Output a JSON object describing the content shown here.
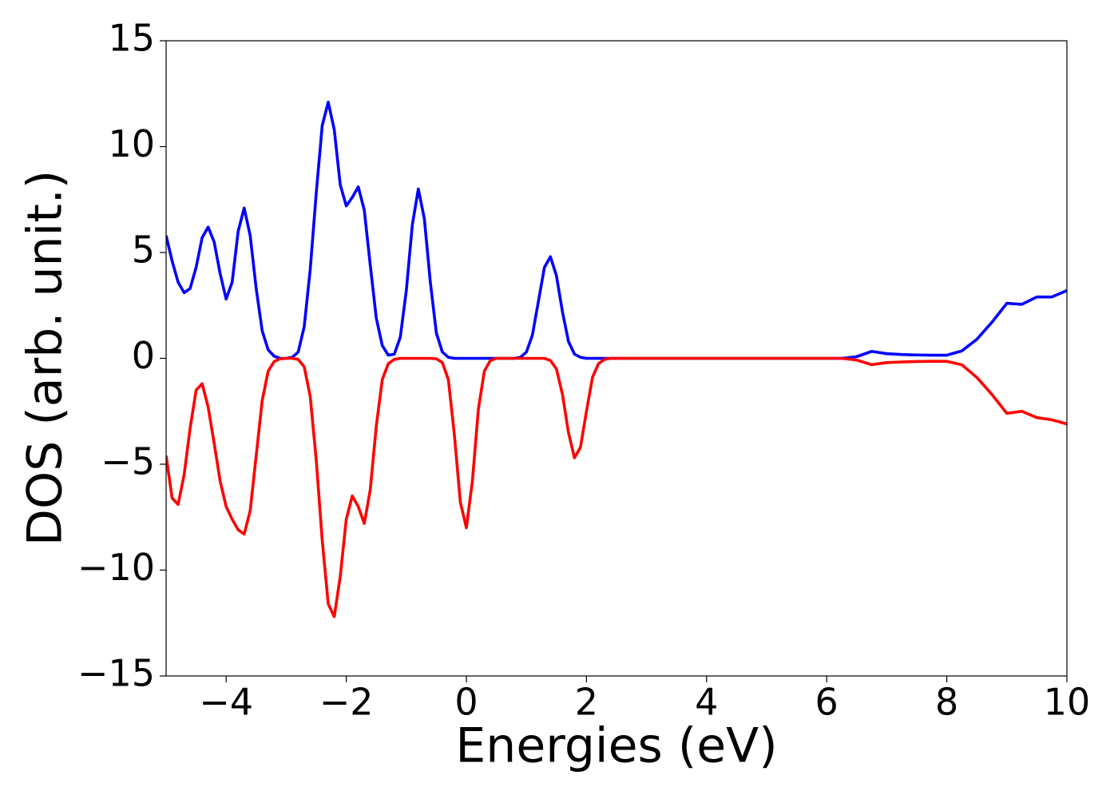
{
  "chart_data": {
    "type": "line",
    "x_label": "Energies (eV)",
    "y_label": "DOS (arb. unit.)",
    "x": [
      -5.0,
      -4.9,
      -4.8,
      -4.7,
      -4.6,
      -4.5,
      -4.4,
      -4.3,
      -4.2,
      -4.1,
      -4.0,
      -3.9,
      -3.8,
      -3.7,
      -3.6,
      -3.5,
      -3.4,
      -3.3,
      -3.2,
      -3.1,
      -3.0,
      -2.9,
      -2.8,
      -2.7,
      -2.6,
      -2.5,
      -2.4,
      -2.3,
      -2.2,
      -2.1,
      -2.0,
      -1.9,
      -1.8,
      -1.7,
      -1.6,
      -1.5,
      -1.4,
      -1.3,
      -1.2,
      -1.1,
      -1.0,
      -0.9,
      -0.8,
      -0.7,
      -0.6,
      -0.5,
      -0.4,
      -0.3,
      -0.2,
      -0.1,
      0.0,
      0.1,
      0.2,
      0.3,
      0.4,
      0.5,
      0.6,
      0.7,
      0.8,
      0.9,
      1.0,
      1.1,
      1.2,
      1.3,
      1.4,
      1.5,
      1.6,
      1.7,
      1.8,
      1.9,
      2.0,
      2.1,
      2.2,
      2.3,
      2.4,
      2.5,
      2.75,
      3.0,
      3.25,
      3.5,
      3.75,
      4.0,
      4.25,
      4.5,
      4.75,
      5.0,
      5.25,
      5.5,
      5.75,
      6.0,
      6.25,
      6.5,
      6.75,
      7.0,
      7.25,
      7.5,
      7.75,
      8.0,
      8.25,
      8.5,
      8.75,
      9.0,
      9.25,
      9.5,
      9.75,
      10.0
    ],
    "series": [
      {
        "color": "#0000ff",
        "values": [
          5.8,
          4.6,
          3.6,
          3.1,
          3.3,
          4.3,
          5.7,
          6.2,
          5.5,
          4.0,
          2.8,
          3.6,
          6.0,
          7.1,
          5.8,
          3.3,
          1.3,
          0.4,
          0.1,
          0.0,
          0.0,
          0.05,
          0.3,
          1.5,
          4.2,
          7.8,
          11.0,
          12.1,
          10.8,
          8.2,
          7.2,
          7.6,
          8.1,
          7.0,
          4.4,
          1.9,
          0.6,
          0.15,
          0.2,
          1.0,
          3.2,
          6.3,
          8.0,
          6.6,
          3.6,
          1.2,
          0.3,
          0.05,
          0,
          0,
          0,
          0,
          0,
          0,
          0,
          0,
          0,
          0,
          0,
          0.05,
          0.3,
          1.1,
          2.7,
          4.3,
          4.8,
          3.9,
          2.2,
          0.8,
          0.2,
          0.05,
          0,
          0,
          0,
          0,
          0,
          0,
          0,
          0,
          0,
          0,
          0,
          0,
          0,
          0,
          0,
          0,
          0,
          0,
          0,
          0,
          0,
          0.08,
          0.33,
          0.22,
          0.18,
          0.16,
          0.15,
          0.15,
          0.35,
          0.9,
          1.7,
          2.6,
          2.55,
          2.9,
          2.9,
          3.2
        ]
      },
      {
        "color": "#ff0000",
        "values": [
          -4.6,
          -6.6,
          -6.9,
          -5.5,
          -3.3,
          -1.5,
          -1.2,
          -2.3,
          -4.0,
          -5.8,
          -7.0,
          -7.6,
          -8.1,
          -8.3,
          -7.2,
          -4.6,
          -2.0,
          -0.6,
          -0.15,
          -0.02,
          0,
          0,
          -0.05,
          -0.4,
          -1.8,
          -4.8,
          -8.6,
          -11.6,
          -12.2,
          -10.3,
          -7.6,
          -6.5,
          -7.0,
          -7.8,
          -6.2,
          -3.2,
          -1.0,
          -0.25,
          -0.05,
          0,
          0,
          0,
          0,
          0,
          0,
          -0.02,
          -0.2,
          -1.0,
          -3.6,
          -6.8,
          -8.0,
          -5.8,
          -2.4,
          -0.6,
          -0.1,
          0,
          0,
          0,
          0,
          0,
          0,
          0,
          0,
          0,
          -0.1,
          -0.5,
          -1.7,
          -3.5,
          -4.7,
          -4.2,
          -2.5,
          -0.9,
          -0.25,
          -0.05,
          0,
          0,
          0,
          0,
          0,
          0,
          0,
          0,
          0,
          0,
          0,
          0,
          0,
          0,
          0,
          0,
          0,
          -0.08,
          -0.3,
          -0.2,
          -0.17,
          -0.15,
          -0.14,
          -0.14,
          -0.3,
          -0.9,
          -1.7,
          -2.6,
          -2.5,
          -2.8,
          -2.9,
          -3.1
        ]
      }
    ],
    "xlim": [
      -5,
      10
    ],
    "ylim": [
      -15,
      15
    ],
    "xticks": [
      {
        "value": -4,
        "label": "−4"
      },
      {
        "value": -2,
        "label": "−2"
      },
      0,
      2,
      4,
      6,
      8,
      10
    ],
    "yticks": [
      {
        "value": -15,
        "label": "−15"
      },
      {
        "value": -10,
        "label": "−10"
      },
      {
        "value": -5,
        "label": "−5"
      },
      0,
      5,
      10,
      15
    ],
    "grid": false
  }
}
